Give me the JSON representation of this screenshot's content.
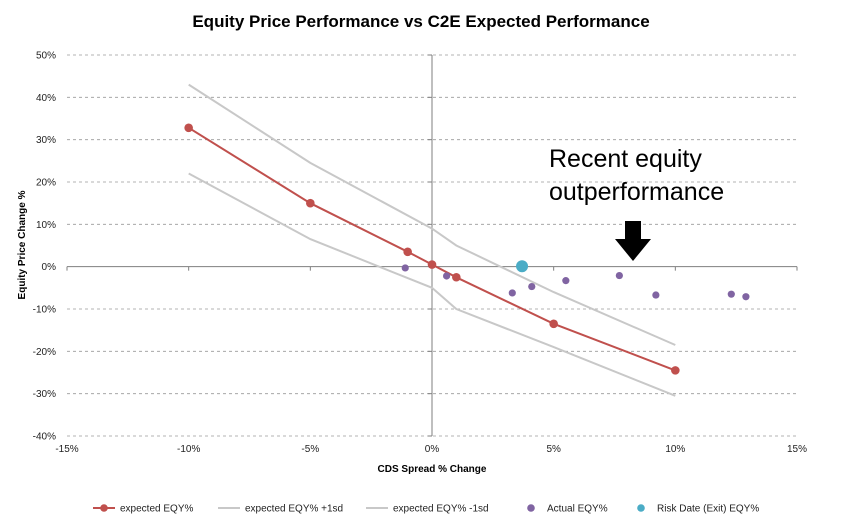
{
  "chart_data": {
    "type": "scatter",
    "title": "Equity Price Performance vs C2E Expected Performance",
    "xlabel": "CDS Spread  % Change",
    "ylabel": "Equity Price Change  %",
    "xlim": [
      -15,
      15
    ],
    "ylim": [
      -40,
      50
    ],
    "x_ticks": [
      "-15%",
      "-10%",
      "-5%",
      "0%",
      "5%",
      "10%",
      "15%"
    ],
    "y_ticks": [
      "-40%",
      "-30%",
      "-20%",
      "-10%",
      "0%",
      "10%",
      "20%",
      "30%",
      "40%",
      "50%"
    ],
    "grid": "horizontal dashed",
    "legend_position": "bottom",
    "series": [
      {
        "name": "expected EQY%",
        "style": "line-marker",
        "color": "#C0504D",
        "points": [
          [
            -10,
            32.8
          ],
          [
            -5,
            15.0
          ],
          [
            -1,
            3.5
          ],
          [
            0,
            0.5
          ],
          [
            1,
            -2.5
          ],
          [
            5,
            -13.5
          ],
          [
            10,
            -24.5
          ]
        ]
      },
      {
        "name": "expected EQY% +1sd",
        "style": "line",
        "color": "#C8C8C8",
        "points": [
          [
            -10,
            43.0
          ],
          [
            -5,
            24.5
          ],
          [
            0,
            9.0
          ],
          [
            1,
            5.0
          ],
          [
            5,
            -6.0
          ],
          [
            10,
            -18.5
          ]
        ]
      },
      {
        "name": "expected EQY% -1sd",
        "style": "line",
        "color": "#C8C8C8",
        "points": [
          [
            -10,
            22.0
          ],
          [
            -5,
            6.5
          ],
          [
            0,
            -5.0
          ],
          [
            1,
            -10.0
          ],
          [
            5,
            -19.0
          ],
          [
            10,
            -30.5
          ]
        ]
      },
      {
        "name": "Actual EQY%",
        "style": "marker",
        "color": "#8064A2",
        "points": [
          [
            -1.1,
            -0.3
          ],
          [
            0.6,
            -2.2
          ],
          [
            3.3,
            -6.2
          ],
          [
            4.1,
            -4.7
          ],
          [
            5.5,
            -3.3
          ],
          [
            7.7,
            -2.1
          ],
          [
            9.2,
            -6.7
          ],
          [
            12.3,
            -6.5
          ],
          [
            12.9,
            -7.1
          ]
        ]
      },
      {
        "name": "Risk Date (Exit) EQY%",
        "style": "marker-large",
        "color": "#4BACC6",
        "points": [
          [
            3.7,
            0.1
          ]
        ]
      }
    ],
    "annotation": {
      "lines": [
        "Recent equity",
        "outperformance"
      ],
      "arrow": "down"
    }
  }
}
